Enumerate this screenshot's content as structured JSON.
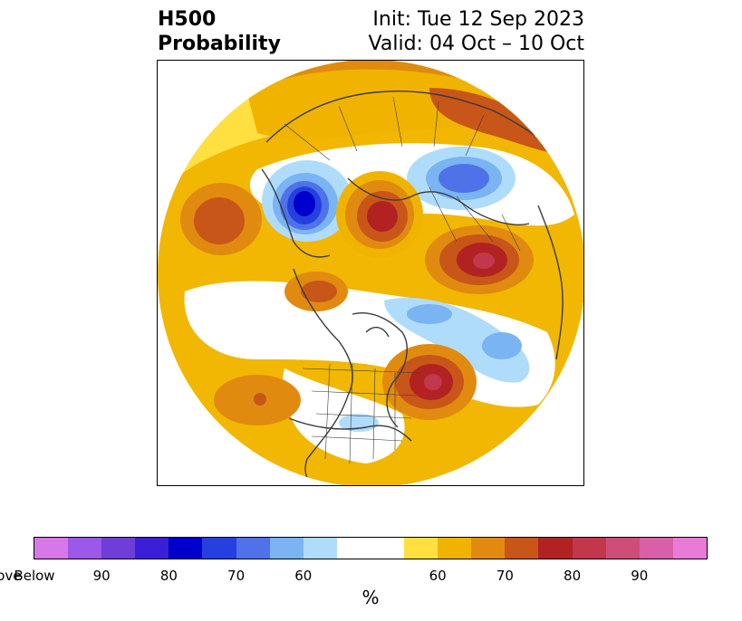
{
  "header": {
    "title_line1": "H500",
    "title_line2": "Probability",
    "init_text": "Init: Tue 12 Sep 2023",
    "valid_text": "Valid: 04 Oct – 10 Oct"
  },
  "colorbar": {
    "colors": [
      "#d877e8",
      "#9c58e6",
      "#6f3ed9",
      "#3b1fd6",
      "#0000cc",
      "#2440df",
      "#4f72e8",
      "#7ab4f2",
      "#b0dcfb",
      "#ffffff",
      "#ffe040",
      "#f0b400",
      "#e08b10",
      "#c85618",
      "#b22222",
      "#c2374b",
      "#ce4e7a",
      "#d860a8",
      "#e87ad8"
    ],
    "weights": [
      1,
      1,
      1,
      1,
      1,
      1,
      1,
      1,
      1,
      2,
      1,
      1,
      1,
      1,
      1,
      1,
      1,
      1,
      1
    ],
    "ticks": [
      "Below",
      "90",
      "80",
      "70",
      "60",
      "60",
      "70",
      "80",
      "90",
      "Above"
    ],
    "unit": "%"
  },
  "map": {
    "projection": "north-polar-stereographic",
    "features": [
      "land-outlines",
      "country-borders",
      "us-state-borders"
    ]
  }
}
